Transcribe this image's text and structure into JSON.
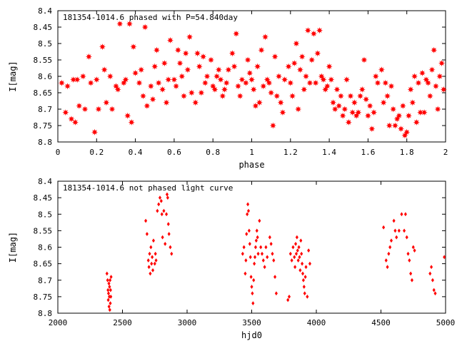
{
  "chart_data": [
    {
      "type": "scatter",
      "title": "181354-1014.6 phased with P=54.840day",
      "xlabel": "phase",
      "ylabel": "I[mag]",
      "xlim": [
        0,
        2
      ],
      "ylim": [
        8.8,
        8.4
      ],
      "y_inverted": true,
      "x_ticks": [
        "0",
        "0.2",
        "0.4",
        "0.6",
        "0.8",
        "1",
        "1.2",
        "1.4",
        "1.6",
        "1.8",
        "2"
      ],
      "y_ticks": [
        "8.4",
        "8.45",
        "8.5",
        "8.55",
        "8.6",
        "8.65",
        "8.7",
        "8.75",
        "8.8"
      ],
      "marker": "star",
      "color": "#ff0000",
      "points": [
        [
          0.02,
          8.62
        ],
        [
          0.04,
          8.71
        ],
        [
          0.05,
          8.63
        ],
        [
          0.07,
          8.73
        ],
        [
          0.08,
          8.61
        ],
        [
          0.09,
          8.74
        ],
        [
          0.1,
          8.61
        ],
        [
          0.11,
          8.69
        ],
        [
          0.13,
          8.6
        ],
        [
          0.14,
          8.7
        ],
        [
          0.16,
          8.54
        ],
        [
          0.17,
          8.62
        ],
        [
          0.19,
          8.77
        ],
        [
          0.2,
          8.61
        ],
        [
          0.21,
          8.7
        ],
        [
          0.23,
          8.51
        ],
        [
          0.24,
          8.58
        ],
        [
          0.25,
          8.68
        ],
        [
          0.27,
          8.6
        ],
        [
          0.28,
          8.7
        ],
        [
          0.3,
          8.63
        ],
        [
          0.31,
          8.64
        ],
        [
          0.32,
          8.44
        ],
        [
          0.34,
          8.62
        ],
        [
          0.35,
          8.61
        ],
        [
          0.36,
          8.72
        ],
        [
          0.37,
          8.44
        ],
        [
          0.38,
          8.74
        ],
        [
          0.39,
          8.51
        ],
        [
          0.4,
          8.59
        ],
        [
          0.42,
          8.62
        ],
        [
          0.43,
          8.58
        ],
        [
          0.44,
          8.66
        ],
        [
          0.45,
          8.45
        ],
        [
          0.46,
          8.69
        ],
        [
          0.48,
          8.63
        ],
        [
          0.49,
          8.67
        ],
        [
          0.5,
          8.57
        ],
        [
          0.51,
          8.52
        ],
        [
          0.52,
          8.62
        ],
        [
          0.54,
          8.64
        ],
        [
          0.55,
          8.56
        ],
        [
          0.56,
          8.68
        ],
        [
          0.57,
          8.61
        ],
        [
          0.58,
          8.49
        ],
        [
          0.6,
          8.61
        ],
        [
          0.61,
          8.63
        ],
        [
          0.62,
          8.52
        ],
        [
          0.63,
          8.56
        ],
        [
          0.64,
          8.6
        ],
        [
          0.65,
          8.66
        ],
        [
          0.66,
          8.53
        ],
        [
          0.67,
          8.58
        ],
        [
          0.68,
          8.48
        ],
        [
          0.69,
          8.65
        ],
        [
          0.71,
          8.68
        ],
        [
          0.72,
          8.53
        ],
        [
          0.73,
          8.57
        ],
        [
          0.74,
          8.65
        ],
        [
          0.75,
          8.54
        ],
        [
          0.76,
          8.62
        ],
        [
          0.77,
          8.6
        ],
        [
          0.79,
          8.55
        ],
        [
          0.8,
          8.63
        ],
        [
          0.81,
          8.64
        ],
        [
          0.82,
          8.6
        ],
        [
          0.83,
          8.58
        ],
        [
          0.84,
          8.61
        ],
        [
          0.85,
          8.66
        ],
        [
          0.86,
          8.64
        ],
        [
          0.87,
          8.62
        ],
        [
          0.88,
          8.58
        ],
        [
          0.9,
          8.53
        ],
        [
          0.91,
          8.57
        ],
        [
          0.92,
          8.47
        ],
        [
          0.93,
          8.63
        ],
        [
          0.94,
          8.66
        ],
        [
          0.95,
          8.61
        ],
        [
          0.97,
          8.62
        ],
        [
          0.98,
          8.55
        ],
        [
          0.99,
          8.59
        ],
        [
          1.0,
          8.61
        ],
        [
          1.01,
          8.64
        ],
        [
          1.02,
          8.69
        ],
        [
          1.03,
          8.57
        ],
        [
          1.04,
          8.68
        ],
        [
          1.05,
          8.52
        ],
        [
          1.06,
          8.63
        ],
        [
          1.07,
          8.48
        ],
        [
          1.08,
          8.61
        ],
        [
          1.09,
          8.62
        ],
        [
          1.1,
          8.65
        ],
        [
          1.11,
          8.75
        ],
        [
          1.12,
          8.54
        ],
        [
          1.13,
          8.66
        ],
        [
          1.14,
          8.6
        ],
        [
          1.15,
          8.68
        ],
        [
          1.16,
          8.71
        ],
        [
          1.17,
          8.61
        ],
        [
          1.19,
          8.57
        ],
        [
          1.2,
          8.62
        ],
        [
          1.21,
          8.66
        ],
        [
          1.22,
          8.56
        ],
        [
          1.23,
          8.5
        ],
        [
          1.24,
          8.7
        ],
        [
          1.25,
          8.58
        ],
        [
          1.26,
          8.54
        ],
        [
          1.27,
          8.64
        ],
        [
          1.28,
          8.6
        ],
        [
          1.29,
          8.46
        ],
        [
          1.3,
          8.62
        ],
        [
          1.31,
          8.55
        ],
        [
          1.32,
          8.47
        ],
        [
          1.33,
          8.62
        ],
        [
          1.34,
          8.53
        ],
        [
          1.35,
          8.46
        ],
        [
          1.36,
          8.6
        ],
        [
          1.37,
          8.61
        ],
        [
          1.38,
          8.64
        ],
        [
          1.39,
          8.63
        ],
        [
          1.4,
          8.57
        ],
        [
          1.41,
          8.61
        ],
        [
          1.42,
          8.68
        ],
        [
          1.43,
          8.7
        ],
        [
          1.44,
          8.64
        ],
        [
          1.45,
          8.69
        ],
        [
          1.46,
          8.66
        ],
        [
          1.47,
          8.72
        ],
        [
          1.48,
          8.7
        ],
        [
          1.49,
          8.61
        ],
        [
          1.5,
          8.74
        ],
        [
          1.51,
          8.66
        ],
        [
          1.52,
          8.71
        ],
        [
          1.53,
          8.68
        ],
        [
          1.54,
          8.72
        ],
        [
          1.55,
          8.71
        ],
        [
          1.56,
          8.66
        ],
        [
          1.57,
          8.64
        ],
        [
          1.58,
          8.55
        ],
        [
          1.59,
          8.67
        ],
        [
          1.6,
          8.72
        ],
        [
          1.61,
          8.69
        ],
        [
          1.62,
          8.76
        ],
        [
          1.63,
          8.71
        ],
        [
          1.64,
          8.6
        ],
        [
          1.65,
          8.62
        ],
        [
          1.67,
          8.58
        ],
        [
          1.68,
          8.68
        ],
        [
          1.69,
          8.62
        ],
        [
          1.7,
          8.66
        ],
        [
          1.71,
          8.75
        ],
        [
          1.72,
          8.63
        ],
        [
          1.73,
          8.7
        ],
        [
          1.74,
          8.75
        ],
        [
          1.75,
          8.73
        ],
        [
          1.76,
          8.72
        ],
        [
          1.77,
          8.76
        ],
        [
          1.78,
          8.69
        ],
        [
          1.79,
          8.78
        ],
        [
          1.8,
          8.77
        ],
        [
          1.81,
          8.72
        ],
        [
          1.82,
          8.64
        ],
        [
          1.83,
          8.68
        ],
        [
          1.84,
          8.6
        ],
        [
          1.85,
          8.74
        ],
        [
          1.86,
          8.62
        ],
        [
          1.87,
          8.71
        ],
        [
          1.88,
          8.59
        ],
        [
          1.89,
          8.71
        ],
        [
          1.9,
          8.61
        ],
        [
          1.91,
          8.62
        ],
        [
          1.92,
          8.66
        ],
        [
          1.93,
          8.58
        ],
        [
          1.94,
          8.52
        ],
        [
          1.95,
          8.63
        ],
        [
          1.96,
          8.7
        ],
        [
          1.97,
          8.6
        ],
        [
          1.98,
          8.56
        ],
        [
          1.99,
          8.64
        ]
      ]
    },
    {
      "type": "scatter",
      "title": "181354-1014.6 not phased light curve",
      "xlabel": "hjd0",
      "ylabel": "I[mag]",
      "xlim": [
        2000,
        5000
      ],
      "ylim": [
        8.8,
        8.4
      ],
      "y_inverted": true,
      "x_ticks": [
        "2000",
        "2500",
        "3000",
        "3500",
        "4000",
        "4500",
        "5000"
      ],
      "y_ticks": [
        "8.4",
        "8.45",
        "8.5",
        "8.55",
        "8.6",
        "8.65",
        "8.7",
        "8.75",
        "8.8"
      ],
      "marker": "diamond",
      "color": "#ff0000",
      "points": [
        [
          2380,
          8.68
        ],
        [
          2385,
          8.7
        ],
        [
          2388,
          8.73
        ],
        [
          2390,
          8.76
        ],
        [
          2392,
          8.74
        ],
        [
          2395,
          8.71
        ],
        [
          2396,
          8.78
        ],
        [
          2398,
          8.75
        ],
        [
          2400,
          8.72
        ],
        [
          2402,
          8.79
        ],
        [
          2404,
          8.7
        ],
        [
          2406,
          8.77
        ],
        [
          2408,
          8.73
        ],
        [
          2410,
          8.75
        ],
        [
          2412,
          8.69
        ],
        [
          2680,
          8.52
        ],
        [
          2690,
          8.56
        ],
        [
          2700,
          8.64
        ],
        [
          2705,
          8.66
        ],
        [
          2710,
          8.62
        ],
        [
          2715,
          8.68
        ],
        [
          2720,
          8.6
        ],
        [
          2725,
          8.65
        ],
        [
          2730,
          8.63
        ],
        [
          2735,
          8.67
        ],
        [
          2740,
          8.58
        ],
        [
          2750,
          8.65
        ],
        [
          2755,
          8.62
        ],
        [
          2760,
          8.64
        ],
        [
          2770,
          8.49
        ],
        [
          2780,
          8.47
        ],
        [
          2790,
          8.45
        ],
        [
          2800,
          8.46
        ],
        [
          2805,
          8.5
        ],
        [
          2810,
          8.57
        ],
        [
          2820,
          8.49
        ],
        [
          2830,
          8.59
        ],
        [
          2840,
          8.5
        ],
        [
          2845,
          8.44
        ],
        [
          2850,
          8.45
        ],
        [
          2855,
          8.53
        ],
        [
          2860,
          8.56
        ],
        [
          2870,
          8.6
        ],
        [
          2880,
          8.62
        ],
        [
          3430,
          8.62
        ],
        [
          3440,
          8.6
        ],
        [
          3450,
          8.68
        ],
        [
          3455,
          8.64
        ],
        [
          3460,
          8.56
        ],
        [
          3465,
          8.5
        ],
        [
          3470,
          8.47
        ],
        [
          3475,
          8.49
        ],
        [
          3480,
          8.55
        ],
        [
          3485,
          8.59
        ],
        [
          3490,
          8.63
        ],
        [
          3495,
          8.69
        ],
        [
          3500,
          8.72
        ],
        [
          3505,
          8.74
        ],
        [
          3510,
          8.77
        ],
        [
          3515,
          8.7
        ],
        [
          3520,
          8.65
        ],
        [
          3525,
          8.63
        ],
        [
          3530,
          8.6
        ],
        [
          3535,
          8.58
        ],
        [
          3540,
          8.55
        ],
        [
          3545,
          8.57
        ],
        [
          3550,
          8.62
        ],
        [
          3560,
          8.52
        ],
        [
          3570,
          8.6
        ],
        [
          3580,
          8.62
        ],
        [
          3590,
          8.64
        ],
        [
          3600,
          8.66
        ],
        [
          3610,
          8.6
        ],
        [
          3620,
          8.63
        ],
        [
          3640,
          8.57
        ],
        [
          3650,
          8.59
        ],
        [
          3660,
          8.62
        ],
        [
          3670,
          8.64
        ],
        [
          3680,
          8.69
        ],
        [
          3690,
          8.74
        ],
        [
          3780,
          8.76
        ],
        [
          3790,
          8.75
        ],
        [
          3800,
          8.62
        ],
        [
          3810,
          8.64
        ],
        [
          3820,
          8.6
        ],
        [
          3830,
          8.63
        ],
        [
          3835,
          8.66
        ],
        [
          3840,
          8.59
        ],
        [
          3845,
          8.62
        ],
        [
          3850,
          8.57
        ],
        [
          3855,
          8.61
        ],
        [
          3860,
          8.64
        ],
        [
          3865,
          8.6
        ],
        [
          3870,
          8.63
        ],
        [
          3875,
          8.67
        ],
        [
          3880,
          8.58
        ],
        [
          3885,
          8.62
        ],
        [
          3890,
          8.65
        ],
        [
          3895,
          8.68
        ],
        [
          3900,
          8.7
        ],
        [
          3905,
          8.72
        ],
        [
          3910,
          8.74
        ],
        [
          3915,
          8.69
        ],
        [
          3920,
          8.66
        ],
        [
          3930,
          8.75
        ],
        [
          3940,
          8.61
        ],
        [
          3950,
          8.65
        ],
        [
          4520,
          8.54
        ],
        [
          4540,
          8.64
        ],
        [
          4550,
          8.66
        ],
        [
          4560,
          8.62
        ],
        [
          4570,
          8.6
        ],
        [
          4580,
          8.58
        ],
        [
          4600,
          8.52
        ],
        [
          4610,
          8.55
        ],
        [
          4620,
          8.57
        ],
        [
          4640,
          8.55
        ],
        [
          4660,
          8.5
        ],
        [
          4680,
          8.55
        ],
        [
          4690,
          8.5
        ],
        [
          4700,
          8.57
        ],
        [
          4710,
          8.62
        ],
        [
          4720,
          8.64
        ],
        [
          4730,
          8.68
        ],
        [
          4740,
          8.7
        ],
        [
          4750,
          8.6
        ],
        [
          4760,
          8.61
        ],
        [
          4880,
          8.68
        ],
        [
          4890,
          8.66
        ],
        [
          4900,
          8.7
        ],
        [
          4910,
          8.73
        ],
        [
          4920,
          8.74
        ],
        [
          4990,
          8.63
        ]
      ]
    }
  ]
}
